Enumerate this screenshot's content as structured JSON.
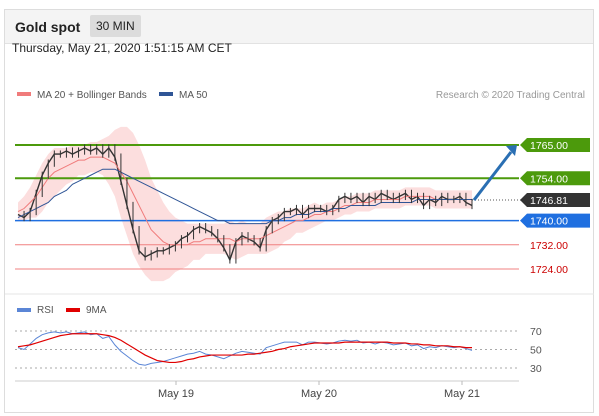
{
  "header": {
    "title": "Gold spot",
    "interval": "30 MIN"
  },
  "timestamp": "Thursday, May 21, 2020 1:51:15 AM CET",
  "chart_data": {
    "type": "line",
    "x_labels": [
      "May 19",
      "May 20",
      "May 21"
    ],
    "price_panel": {
      "legend": [
        {
          "name": "MA 20 + Bollinger Bands",
          "color": "#f07b7b"
        },
        {
          "name": "MA 50",
          "color": "#2f5596"
        }
      ],
      "credit": "Research © 2020 Trading Central",
      "current_price": {
        "value": 1746.81,
        "label": "1746.81",
        "color": "#333333"
      },
      "resistance": [
        {
          "value": 1765.0,
          "label": "1765.00",
          "color": "#4c9a0c"
        },
        {
          "value": 1754.0,
          "label": "1754.00",
          "color": "#4c9a0c"
        }
      ],
      "pivot": {
        "value": 1740.0,
        "label": "1740.00",
        "color": "#1f6fe0"
      },
      "support": [
        {
          "value": 1732.0,
          "label": "1732.00",
          "color": "#cc0000"
        },
        {
          "value": 1724.0,
          "label": "1724.00",
          "color": "#cc0000"
        }
      ],
      "target_arrow": {
        "from": 1746.8,
        "to": 1765.0,
        "color": "#2a6fb3"
      },
      "series": [
        {
          "name": "Price",
          "color": "#333333",
          "values": [
            1742,
            1741,
            1743,
            1749,
            1755,
            1759,
            1762,
            1762,
            1763,
            1762,
            1763,
            1764,
            1763,
            1764,
            1762,
            1764,
            1761,
            1753,
            1745,
            1737,
            1730,
            1728,
            1729,
            1730,
            1730,
            1731,
            1732,
            1734,
            1735,
            1737,
            1738,
            1737,
            1736,
            1734,
            1731,
            1727,
            1733,
            1735,
            1734,
            1733,
            1731,
            1737,
            1740,
            1741,
            1743,
            1743,
            1744,
            1742,
            1744,
            1744,
            1744,
            1743,
            1744,
            1747,
            1748,
            1747,
            1748,
            1746,
            1748,
            1747,
            1749,
            1748,
            1747,
            1748,
            1749,
            1747,
            1748,
            1745,
            1747,
            1746,
            1748,
            1747,
            1747,
            1748,
            1746,
            1745
          ]
        },
        {
          "name": "MA 20",
          "color": "#f07b7b",
          "values": [
            1743,
            1744,
            1746,
            1748,
            1751,
            1754,
            1756,
            1757,
            1758,
            1759,
            1760,
            1760,
            1761,
            1761,
            1761,
            1760,
            1759,
            1756,
            1753,
            1749,
            1745,
            1741,
            1737,
            1735,
            1733,
            1732,
            1732,
            1732,
            1732,
            1733,
            1733,
            1734,
            1734,
            1734,
            1734,
            1734,
            1733,
            1734,
            1734,
            1734,
            1734,
            1735,
            1736,
            1737,
            1738,
            1739,
            1740,
            1740,
            1741,
            1742,
            1742,
            1743,
            1743,
            1744,
            1745,
            1745,
            1746,
            1746,
            1746,
            1747,
            1747,
            1747,
            1747,
            1747,
            1748,
            1748,
            1748,
            1748,
            1748,
            1747,
            1747,
            1747,
            1747,
            1747,
            1747,
            1747
          ]
        },
        {
          "name": "MA 50",
          "color": "#2f5596",
          "values": [
            1741,
            1742,
            1743,
            1744,
            1745,
            1746,
            1748,
            1749,
            1750,
            1752,
            1753,
            1754,
            1755,
            1756,
            1757,
            1757,
            1757,
            1756,
            1755,
            1754,
            1753,
            1752,
            1751,
            1750,
            1749,
            1748,
            1747,
            1746,
            1745,
            1744,
            1743,
            1742,
            1741,
            1740,
            1740,
            1739,
            1739,
            1739,
            1739,
            1739,
            1739,
            1739,
            1740,
            1740,
            1741,
            1741,
            1742,
            1742,
            1742,
            1743,
            1743,
            1743,
            1744,
            1744,
            1744,
            1745,
            1745,
            1745,
            1745,
            1745,
            1746,
            1746,
            1746,
            1746,
            1746,
            1746,
            1747,
            1747,
            1747,
            1747,
            1747,
            1747,
            1747,
            1747,
            1747,
            1747
          ]
        }
      ],
      "bollinger_halfwidth": [
        3,
        4,
        5,
        7,
        8,
        8,
        8,
        7,
        6,
        6,
        5,
        5,
        5,
        5,
        6,
        8,
        11,
        15,
        18,
        20,
        20,
        19,
        17,
        15,
        13,
        11,
        9,
        8,
        7,
        6,
        6,
        5,
        5,
        5,
        5,
        6,
        6,
        6,
        5,
        5,
        5,
        6,
        6,
        6,
        5,
        5,
        4,
        4,
        4,
        4,
        3,
        3,
        3,
        3,
        3,
        3,
        3,
        3,
        3,
        3,
        3,
        3,
        3,
        3,
        3,
        3,
        3,
        3,
        3,
        3,
        3,
        3,
        3,
        3,
        3,
        3
      ]
    },
    "rsi_panel": {
      "legend": [
        {
          "name": "RSI",
          "color": "#5b86d6"
        },
        {
          "name": "9MA",
          "color": "#e00000"
        }
      ],
      "levels": [
        70,
        50,
        30
      ],
      "ylim": [
        20,
        80
      ],
      "series": [
        {
          "name": "RSI",
          "color": "#5b86d6",
          "values": [
            52,
            50,
            56,
            62,
            66,
            68,
            69,
            68,
            69,
            67,
            68,
            69,
            66,
            67,
            62,
            64,
            55,
            48,
            43,
            38,
            34,
            33,
            35,
            36,
            37,
            39,
            41,
            43,
            45,
            46,
            48,
            45,
            44,
            42,
            40,
            43,
            46,
            48,
            47,
            46,
            45,
            52,
            54,
            56,
            58,
            58,
            58,
            55,
            58,
            58,
            57,
            56,
            57,
            59,
            60,
            59,
            60,
            57,
            58,
            56,
            58,
            57,
            55,
            56,
            57,
            54,
            55,
            51,
            53,
            52,
            54,
            53,
            52,
            53,
            51,
            49
          ]
        },
        {
          "name": "9MA",
          "color": "#e00000",
          "values": [
            53,
            54,
            55,
            57,
            59,
            61,
            63,
            65,
            66,
            67,
            67,
            67,
            67,
            67,
            66,
            65,
            63,
            60,
            56,
            52,
            48,
            44,
            41,
            38,
            37,
            36,
            36,
            37,
            39,
            40,
            42,
            43,
            44,
            44,
            44,
            44,
            44,
            44,
            45,
            45,
            46,
            47,
            48,
            50,
            51,
            53,
            54,
            55,
            56,
            57,
            57,
            57,
            57,
            57,
            58,
            58,
            58,
            58,
            58,
            58,
            58,
            58,
            57,
            57,
            57,
            56,
            56,
            55,
            55,
            54,
            54,
            54,
            53,
            53,
            52,
            52
          ]
        }
      ]
    }
  }
}
